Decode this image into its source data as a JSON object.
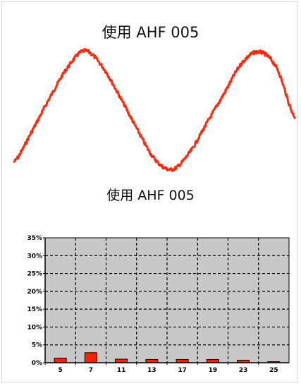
{
  "titles": {
    "waveform": "使用 AHF 005",
    "spectrum": "使用 AHF 005"
  },
  "colors": {
    "waveform": "#ff2a10",
    "bar_fill": "#ff2200",
    "plot_bg": "#c8c8c8"
  },
  "chart_data": [
    {
      "type": "line",
      "title": "使用 AHF 005",
      "description_free": true,
      "x": [
        0,
        45,
        90,
        135,
        180,
        225,
        270,
        315,
        360,
        405,
        450,
        495,
        540,
        585,
        630,
        675,
        720
      ],
      "values": [
        -0.85,
        -0.35,
        0.2,
        0.7,
        1.0,
        0.75,
        0.25,
        -0.3,
        -0.8,
        -0.98,
        -0.7,
        -0.2,
        0.3,
        0.8,
        0.98,
        0.7,
        -0.1
      ],
      "noise": "high-frequency ripple",
      "series": [
        {
          "values": [
            -0.85,
            -0.35,
            0.2,
            0.7,
            1.0,
            0.75,
            0.25,
            -0.3,
            -0.8,
            -0.98,
            -0.7,
            -0.2,
            0.3,
            0.8,
            0.98,
            0.7,
            -0.1
          ]
        }
      ]
    },
    {
      "type": "bar",
      "title": "使用 AHF 005",
      "categories": [
        "5",
        "7",
        "11",
        "13",
        "17",
        "19",
        "23",
        "25"
      ],
      "values": [
        1.3,
        2.8,
        1.0,
        0.9,
        0.9,
        0.9,
        0.7,
        0.3
      ],
      "y_ticks": [
        "0%",
        "5%",
        "10%",
        "15%",
        "20%",
        "25%",
        "30%",
        "35%"
      ],
      "ylim": [
        0,
        35
      ],
      "grid": true
    }
  ]
}
